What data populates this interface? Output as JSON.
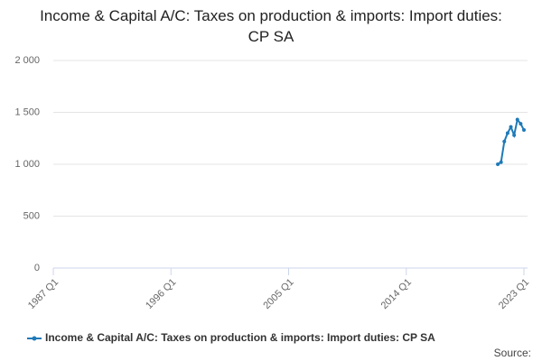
{
  "chart_data": {
    "type": "line",
    "title": "Income & Capital A/C: Taxes on production & imports: Import duties: CP SA",
    "x": [
      "2021 Q1",
      "2021 Q2",
      "2021 Q3",
      "2021 Q4",
      "2022 Q1",
      "2022 Q2",
      "2022 Q3",
      "2022 Q4",
      "2023 Q1"
    ],
    "series": [
      {
        "name": "Income & Capital A/C: Taxes on production & imports: Import duties: CP SA",
        "color": "#1f7ab8",
        "values": [
          1000,
          1020,
          1220,
          1300,
          1360,
          1280,
          1430,
          1390,
          1330
        ]
      }
    ],
    "xlim": [
      "1987 Q1",
      "2023 Q1"
    ],
    "xticks": [
      "1987 Q1",
      "1996 Q1",
      "2005 Q1",
      "2014 Q1",
      "2023 Q1"
    ],
    "ylim": [
      0,
      2000
    ],
    "yticks": [
      0,
      500,
      {
        "value": 1000,
        "label": "1 000"
      },
      {
        "value": 1500,
        "label": "1 500"
      },
      {
        "value": 2000,
        "label": "2 000"
      }
    ],
    "grid": true,
    "legend": "bottom",
    "source": "Source:"
  }
}
